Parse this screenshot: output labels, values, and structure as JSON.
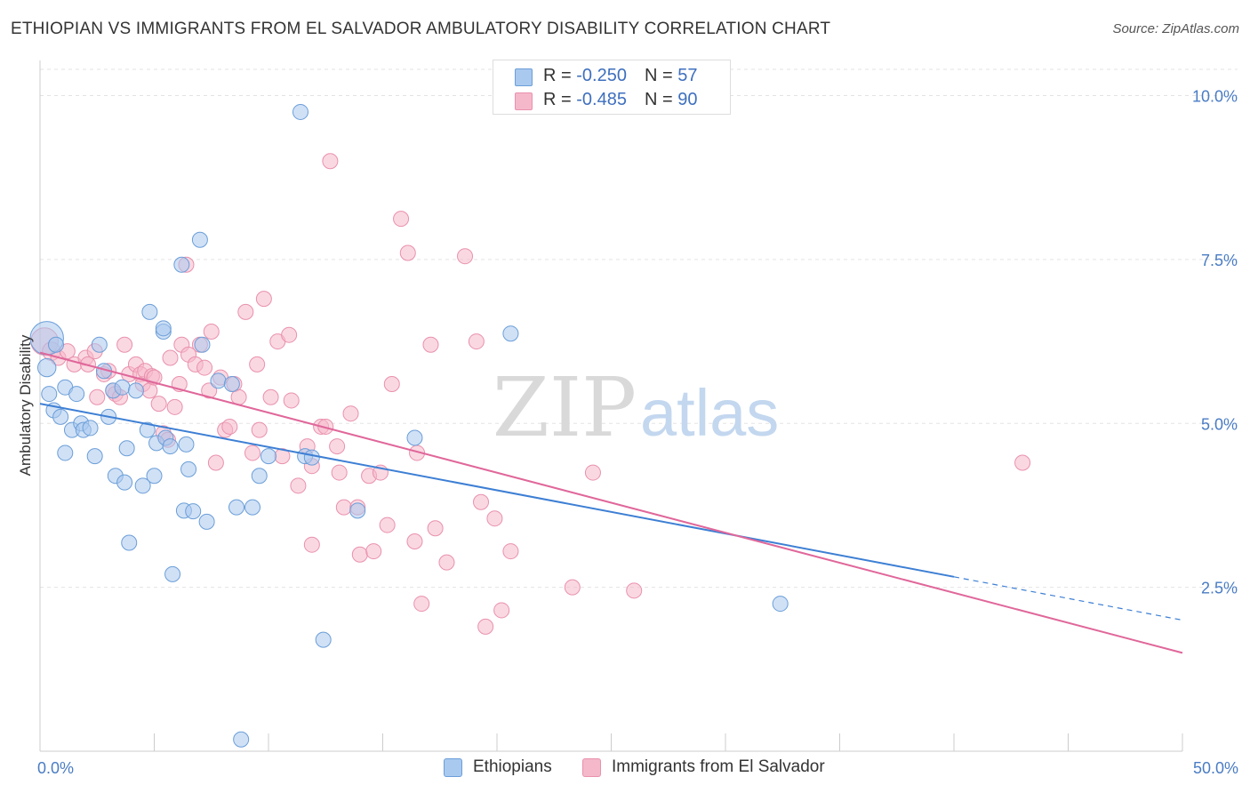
{
  "header": {
    "title": "ETHIOPIAN VS IMMIGRANTS FROM EL SALVADOR AMBULATORY DISABILITY CORRELATION CHART",
    "source": "Source: ZipAtlas.com"
  },
  "watermark": {
    "zip": "ZIP",
    "atlas": "atlas"
  },
  "legend": {
    "ethiopians": {
      "r_label": "R = ",
      "r_value": "-0.250",
      "n_label": "N = ",
      "n_value": "57"
    },
    "salvador": {
      "r_label": "R = ",
      "r_value": "-0.485",
      "n_label": "N = ",
      "n_value": "90"
    }
  },
  "colors": {
    "blue_fill": "#a9c9ef",
    "blue_stroke": "#6b9ed8",
    "blue_line": "#3d7fd4",
    "pink_fill": "#f5b8cb",
    "pink_stroke": "#e991ad",
    "pink_line": "#e0679a",
    "tick_label": "#4a7cc4",
    "grid": "#e3e3e3"
  },
  "chart_data": {
    "type": "scatter",
    "title": "ETHIOPIAN VS IMMIGRANTS FROM EL SALVADOR AMBULATORY DISABILITY CORRELATION CHART",
    "xlabel": "",
    "ylabel": "Ambulatory Disability",
    "xlim": [
      0,
      50
    ],
    "ylim": [
      0,
      10.4
    ],
    "x_tick_labels": [
      "0.0%",
      "50.0%"
    ],
    "y_ticks": [
      {
        "value": 2.5,
        "label": "2.5%"
      },
      {
        "value": 5.0,
        "label": "5.0%"
      },
      {
        "value": 7.5,
        "label": "7.5%"
      },
      {
        "value": 10.0,
        "label": "10.0%"
      }
    ],
    "grid": true,
    "legend_position": "bottom",
    "series": [
      {
        "name": "Ethiopians",
        "r": -0.25,
        "n": 57,
        "trend": {
          "x0": 0,
          "y0": 5.3,
          "x1": 40,
          "y1": 2.66,
          "dash_to_x": 50,
          "dash_to_y": 2.0
        },
        "points": [
          [
            0.3,
            6.3,
            2.2
          ],
          [
            0.3,
            5.85,
            1.2
          ],
          [
            0.4,
            5.45,
            1
          ],
          [
            0.6,
            5.2,
            1
          ],
          [
            0.7,
            6.2,
            1
          ],
          [
            0.9,
            5.1,
            1
          ],
          [
            1.1,
            5.55,
            1
          ],
          [
            1.1,
            4.55,
            1
          ],
          [
            1.4,
            4.9,
            1
          ],
          [
            1.6,
            5.45,
            1
          ],
          [
            1.8,
            5.0,
            1
          ],
          [
            1.9,
            4.9,
            1
          ],
          [
            2.2,
            4.93,
            1
          ],
          [
            2.4,
            4.5,
            1
          ],
          [
            2.6,
            6.2,
            1
          ],
          [
            2.8,
            5.8,
            1
          ],
          [
            3.0,
            5.1,
            1
          ],
          [
            3.2,
            5.5,
            1
          ],
          [
            3.3,
            4.2,
            1
          ],
          [
            3.6,
            5.55,
            1
          ],
          [
            3.7,
            4.1,
            1
          ],
          [
            3.8,
            4.62,
            1
          ],
          [
            3.9,
            3.18,
            1
          ],
          [
            4.2,
            5.5,
            1
          ],
          [
            4.5,
            4.05,
            1
          ],
          [
            4.7,
            4.9,
            1
          ],
          [
            4.8,
            6.7,
            1
          ],
          [
            5.0,
            4.2,
            1
          ],
          [
            5.1,
            4.7,
            1
          ],
          [
            5.4,
            6.4,
            1
          ],
          [
            5.4,
            6.45,
            1
          ],
          [
            5.5,
            4.78,
            1
          ],
          [
            5.7,
            4.65,
            1
          ],
          [
            5.8,
            2.7,
            1
          ],
          [
            6.2,
            7.42,
            1
          ],
          [
            6.3,
            3.67,
            1
          ],
          [
            6.4,
            4.68,
            1
          ],
          [
            6.5,
            4.3,
            1
          ],
          [
            6.7,
            3.66,
            1
          ],
          [
            7.0,
            7.8,
            1
          ],
          [
            7.1,
            6.2,
            1
          ],
          [
            7.3,
            3.5,
            1
          ],
          [
            7.8,
            5.65,
            1
          ],
          [
            8.4,
            5.6,
            1
          ],
          [
            8.6,
            3.72,
            1
          ],
          [
            8.8,
            0.18,
            1
          ],
          [
            9.3,
            3.72,
            1
          ],
          [
            9.6,
            4.2,
            1
          ],
          [
            10.0,
            4.5,
            1
          ],
          [
            11.4,
            9.75,
            1
          ],
          [
            11.6,
            4.5,
            1
          ],
          [
            11.9,
            4.48,
            1
          ],
          [
            12.4,
            1.7,
            1
          ],
          [
            13.9,
            3.67,
            1
          ],
          [
            16.4,
            4.78,
            1
          ],
          [
            20.6,
            6.37,
            1
          ],
          [
            32.4,
            2.25,
            1
          ]
        ]
      },
      {
        "name": "Immigrants from El Salvador",
        "r": -0.485,
        "n": 90,
        "trend": {
          "x0": 0,
          "y0": 6.08,
          "x1": 50,
          "y1": 1.5
        },
        "points": [
          [
            0.2,
            6.25,
            1.8
          ],
          [
            0.5,
            6.1,
            1.2
          ],
          [
            0.8,
            6.0,
            1
          ],
          [
            1.2,
            6.1,
            1
          ],
          [
            1.5,
            5.9,
            1
          ],
          [
            2.0,
            6.0,
            1
          ],
          [
            2.1,
            5.9,
            1
          ],
          [
            2.4,
            6.1,
            1
          ],
          [
            2.5,
            5.4,
            1
          ],
          [
            2.8,
            5.75,
            1
          ],
          [
            3.0,
            5.8,
            1
          ],
          [
            3.2,
            5.5,
            1
          ],
          [
            3.3,
            5.45,
            1
          ],
          [
            3.5,
            5.4,
            1
          ],
          [
            3.7,
            6.2,
            1
          ],
          [
            3.9,
            5.75,
            1
          ],
          [
            4.2,
            5.9,
            1
          ],
          [
            4.4,
            5.75,
            1
          ],
          [
            4.5,
            5.6,
            1
          ],
          [
            4.6,
            5.8,
            1
          ],
          [
            4.8,
            5.5,
            1
          ],
          [
            4.9,
            5.72,
            1
          ],
          [
            5.0,
            5.7,
            1
          ],
          [
            5.2,
            5.3,
            1
          ],
          [
            5.4,
            4.85,
            1
          ],
          [
            5.6,
            4.75,
            1
          ],
          [
            5.7,
            6.0,
            1
          ],
          [
            5.9,
            5.25,
            1
          ],
          [
            6.1,
            5.6,
            1
          ],
          [
            6.2,
            6.2,
            1
          ],
          [
            6.4,
            7.42,
            1
          ],
          [
            6.5,
            6.05,
            1
          ],
          [
            6.8,
            5.9,
            1
          ],
          [
            7.0,
            6.2,
            1
          ],
          [
            7.2,
            5.85,
            1
          ],
          [
            7.4,
            5.5,
            1
          ],
          [
            7.5,
            6.4,
            1
          ],
          [
            7.7,
            4.4,
            1
          ],
          [
            7.9,
            5.7,
            1
          ],
          [
            8.1,
            4.9,
            1
          ],
          [
            8.3,
            4.95,
            1
          ],
          [
            8.5,
            5.6,
            1
          ],
          [
            8.7,
            5.4,
            1
          ],
          [
            9.0,
            6.7,
            1
          ],
          [
            9.3,
            4.55,
            1
          ],
          [
            9.5,
            5.9,
            1
          ],
          [
            9.6,
            4.9,
            1
          ],
          [
            9.8,
            6.9,
            1
          ],
          [
            10.1,
            5.4,
            1
          ],
          [
            10.4,
            6.25,
            1
          ],
          [
            10.6,
            4.5,
            1
          ],
          [
            10.9,
            6.35,
            1
          ],
          [
            11.0,
            5.35,
            1
          ],
          [
            11.3,
            4.05,
            1
          ],
          [
            11.7,
            4.65,
            1
          ],
          [
            11.9,
            4.35,
            1
          ],
          [
            11.9,
            3.15,
            1
          ],
          [
            12.3,
            4.95,
            1
          ],
          [
            12.5,
            4.95,
            1
          ],
          [
            12.7,
            9.0,
            1
          ],
          [
            13.0,
            4.65,
            1
          ],
          [
            13.1,
            4.25,
            1
          ],
          [
            13.3,
            3.72,
            1
          ],
          [
            13.6,
            5.15,
            1
          ],
          [
            13.9,
            3.72,
            1
          ],
          [
            14.0,
            3.0,
            1
          ],
          [
            14.4,
            4.2,
            1
          ],
          [
            14.6,
            3.05,
            1
          ],
          [
            14.9,
            4.25,
            1
          ],
          [
            15.2,
            3.45,
            1
          ],
          [
            15.4,
            5.6,
            1
          ],
          [
            15.8,
            8.12,
            1
          ],
          [
            16.1,
            7.6,
            1
          ],
          [
            16.4,
            3.2,
            1
          ],
          [
            16.5,
            4.55,
            1
          ],
          [
            16.7,
            2.25,
            1
          ],
          [
            17.1,
            6.2,
            1
          ],
          [
            17.3,
            3.4,
            1
          ],
          [
            17.8,
            2.88,
            1
          ],
          [
            18.6,
            7.55,
            1
          ],
          [
            19.1,
            6.25,
            1
          ],
          [
            19.3,
            3.8,
            1
          ],
          [
            19.5,
            1.9,
            1
          ],
          [
            19.9,
            3.55,
            1
          ],
          [
            20.2,
            2.15,
            1
          ],
          [
            20.6,
            3.05,
            1
          ],
          [
            23.3,
            2.5,
            1
          ],
          [
            24.2,
            4.25,
            1
          ],
          [
            26.0,
            2.45,
            1
          ],
          [
            43.0,
            4.4,
            1
          ]
        ]
      }
    ]
  },
  "bottom_legend": {
    "ethiopians_label": "Ethiopians",
    "salvador_label": "Immigrants from El Salvador"
  }
}
